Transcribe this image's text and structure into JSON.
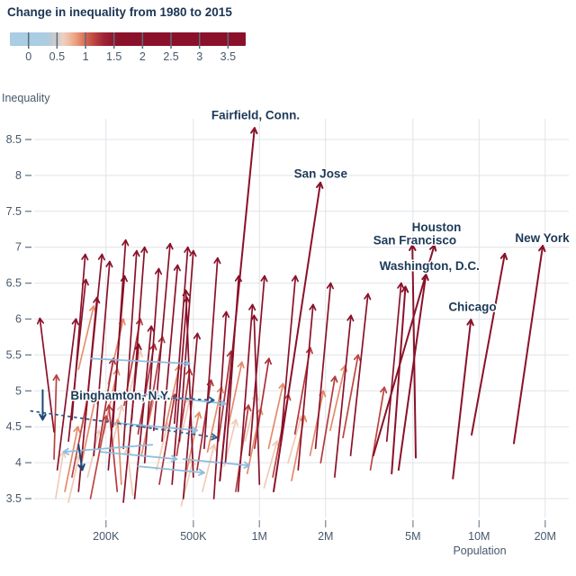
{
  "title": "Change in inequality from 1980 to 2015",
  "legend": {
    "tick_values": [
      0,
      0.5,
      1,
      1.5,
      2,
      2.5,
      3,
      3.5
    ],
    "tick_labels": [
      "0",
      "0.5",
      "1",
      "1.5",
      "2",
      "2.5",
      "3",
      "3.5"
    ],
    "domain": [
      -0.327,
      3.81
    ],
    "stops": [
      {
        "t": -0.35,
        "color": "#a9cde3"
      },
      {
        "t": 0.28,
        "color": "#a9cde3"
      },
      {
        "t": 0.45,
        "color": "#c5c9d0"
      },
      {
        "t": 0.62,
        "color": "#f0d2c0"
      },
      {
        "t": 0.85,
        "color": "#eb9a76"
      },
      {
        "t": 1.05,
        "color": "#cf5a49"
      },
      {
        "t": 1.3,
        "color": "#a02536"
      },
      {
        "t": 1.55,
        "color": "#8a1129"
      },
      {
        "t": 3.9,
        "color": "#8a1129"
      }
    ],
    "special_colors": {
      "navy": "#1c4677",
      "lightblue": "#8fbcdc",
      "dashed": "#2a5d8f"
    }
  },
  "axes": {
    "y_label": "Inequality",
    "x_label": "Population",
    "y_ticks": [
      {
        "v": 8.5,
        "label": "8.5"
      },
      {
        "v": 8,
        "label": "8"
      },
      {
        "v": 7.5,
        "label": "7.5"
      },
      {
        "v": 7,
        "label": "7"
      },
      {
        "v": 6.5,
        "label": "6.5"
      },
      {
        "v": 6,
        "label": "6"
      },
      {
        "v": 5.5,
        "label": "5.5"
      },
      {
        "v": 5,
        "label": "5"
      },
      {
        "v": 4.5,
        "label": "4.5"
      },
      {
        "v": 4,
        "label": "4"
      },
      {
        "v": 3.5,
        "label": "3.5"
      }
    ],
    "x_ticks": [
      {
        "p": 200,
        "label": "200K"
      },
      {
        "p": 500,
        "label": "500K"
      },
      {
        "p": 1000,
        "label": "1M"
      },
      {
        "p": 2000,
        "label": "2M"
      },
      {
        "p": 5000,
        "label": "5M"
      },
      {
        "p": 10000,
        "label": "10M"
      },
      {
        "p": 20000,
        "label": "20M"
      }
    ]
  },
  "chart_data": {
    "type": "arrow-scatter",
    "x_axis": "metro population (log scale, thousands)",
    "y_axis": "inequality (ratio)",
    "note": "each arrow runs from 1980 value to 2015 value; color encodes change",
    "cities": [
      {
        "name": "Fairfield, Conn.",
        "anchor_p": 960,
        "anchor_v": 8.83,
        "arrow": [
          660,
          3.75,
          950,
          8.66
        ]
      },
      {
        "name": "San Jose",
        "anchor_p": 1900,
        "anchor_v": 8.02,
        "arrow": [
          1160,
          3.6,
          1895,
          7.9
        ]
      },
      {
        "name": "Houston",
        "anchor_p": 6400,
        "anchor_v": 7.27,
        "arrow": [
          3300,
          4.1,
          6260,
          7.03
        ]
      },
      {
        "name": "San Francisco",
        "anchor_p": 5100,
        "anchor_v": 7.09,
        "arrow": [
          5150,
          4.07,
          4970,
          7.03
        ]
      },
      {
        "name": "Washington, D.C.",
        "anchor_p": 5950,
        "anchor_v": 6.73,
        "arrow": [
          4300,
          3.9,
          5730,
          6.62
        ]
      },
      {
        "name": "New York",
        "anchor_p": 19400,
        "anchor_v": 7.12,
        "arrow": [
          14400,
          4.27,
          19500,
          7.02
        ]
      },
      {
        "name": "Chicago",
        "anchor_p": 9330,
        "anchor_v": 6.16,
        "arrow": [
          7600,
          3.78,
          9180,
          5.99
        ]
      },
      {
        "name": "Binghamton, N.Y.",
        "anchor_p": 233,
        "anchor_v": 4.93,
        "arrow": [
          103,
          5.01,
          103,
          4.6,
          "navy"
        ]
      }
    ],
    "unlabeled_city_arrows": [
      [
        4000,
        3.85,
        4620,
        6.45
      ],
      [
        9250,
        4.39,
        13100,
        6.91
      ]
    ],
    "arrows": [
      [
        135,
        3.45,
        151,
        4.1
      ],
      [
        165,
        3.8,
        186,
        4.45
      ],
      [
        210,
        4.15,
        236,
        4.8
      ],
      [
        265,
        3.55,
        249,
        4.2
      ],
      [
        340,
        3.9,
        382,
        4.55
      ],
      [
        430,
        4.25,
        483,
        4.9
      ],
      [
        550,
        3.6,
        622,
        4.25
      ],
      [
        690,
        3.95,
        782,
        4.6
      ],
      [
        860,
        4.3,
        972,
        4.95
      ],
      [
        1050,
        3.65,
        1202,
        4.3
      ],
      [
        1350,
        4.0,
        1552,
        4.65
      ],
      [
        252,
        4.9,
        288,
        5.55
      ],
      [
        440,
        3.4,
        500,
        4.05
      ],
      [
        118,
        3.5,
        128,
        4.15
      ],
      [
        130,
        3.6,
        149,
        4.5
      ],
      [
        155,
        4.0,
        179,
        4.9
      ],
      [
        195,
        4.4,
        226,
        5.3
      ],
      [
        235,
        3.7,
        226,
        4.6
      ],
      [
        290,
        4.1,
        336,
        5.0
      ],
      [
        370,
        4.45,
        432,
        5.35
      ],
      [
        460,
        3.8,
        532,
        4.7
      ],
      [
        580,
        4.15,
        672,
        5.05
      ],
      [
        720,
        4.5,
        832,
        5.4
      ],
      [
        880,
        3.85,
        1012,
        4.75
      ],
      [
        1100,
        4.2,
        1282,
        5.1
      ],
      [
        1400,
        3.75,
        1604,
        4.65
      ],
      [
        1700,
        4.1,
        1955,
        5.0
      ],
      [
        2100,
        4.45,
        2455,
        5.35
      ],
      [
        150,
        5.3,
        176,
        6.18
      ],
      [
        205,
        5.1,
        240,
        6.0
      ],
      [
        140,
        3.8,
        166,
        4.95
      ],
      [
        185,
        4.2,
        216,
        5.45
      ],
      [
        225,
        3.6,
        206,
        4.8
      ],
      [
        280,
        4.4,
        332,
        5.65
      ],
      [
        350,
        3.7,
        412,
        4.95
      ],
      [
        420,
        4.1,
        482,
        5.3
      ],
      [
        520,
        3.9,
        602,
        5.15
      ],
      [
        650,
        4.3,
        742,
        5.55
      ],
      [
        780,
        3.6,
        892,
        4.8
      ],
      [
        950,
        4.2,
        1105,
        5.45
      ],
      [
        1150,
        3.8,
        1355,
        4.95
      ],
      [
        1450,
        4.4,
        1705,
        5.6
      ],
      [
        1900,
        4.0,
        2210,
        5.2
      ],
      [
        2400,
        4.35,
        2815,
        5.5
      ],
      [
        3200,
        3.9,
        3705,
        5.05
      ],
      [
        170,
        3.5,
        201,
        4.65
      ],
      [
        310,
        4.55,
        362,
        5.75
      ],
      [
        242,
        4.8,
        287,
        6.0
      ],
      [
        150,
        3.6,
        182,
        6.3
      ],
      [
        176,
        4.1,
        208,
        6.8
      ],
      [
        205,
        3.9,
        243,
        6.6
      ],
      [
        240,
        4.2,
        276,
        6.95
      ],
      [
        300,
        4.0,
        348,
        6.7
      ],
      [
        330,
        4.45,
        392,
        7.05
      ],
      [
        400,
        3.7,
        468,
        6.3
      ],
      [
        432,
        4.3,
        500,
        6.95
      ],
      [
        500,
        3.8,
        462,
        6.4
      ],
      [
        560,
        4.2,
        645,
        6.85
      ],
      [
        620,
        3.5,
        706,
        6.1
      ],
      [
        700,
        4.0,
        805,
        6.6
      ],
      [
        800,
        3.6,
        930,
        6.2
      ],
      [
        900,
        4.1,
        1055,
        6.6
      ],
      [
        1000,
        3.7,
        945,
        6.05
      ],
      [
        1250,
        4.3,
        1460,
        6.6
      ],
      [
        1500,
        3.9,
        1755,
        6.2
      ],
      [
        1800,
        4.2,
        2110,
        6.5
      ],
      [
        2200,
        3.8,
        2610,
        6.05
      ],
      [
        2600,
        4.1,
        3120,
        6.35
      ],
      [
        160,
        4.5,
        192,
        6.9
      ],
      [
        262,
        4.6,
        300,
        7.0
      ],
      [
        270,
        3.5,
        322,
        5.9
      ],
      [
        120,
        3.9,
        146,
        6.0
      ],
      [
        135,
        4.3,
        162,
        6.55
      ],
      [
        3800,
        4.3,
        4420,
        6.5
      ],
      [
        450,
        3.5,
        522,
        5.8
      ],
      [
        240,
        3.45,
        282,
        5.65
      ],
      [
        116,
        4.43,
        100,
        6.01
      ],
      [
        215,
        4.5,
        246,
        7.1
      ],
      [
        410,
        4.55,
        472,
        7.0
      ],
      [
        360,
        4.3,
        424,
        6.75
      ],
      [
        140,
        4.6,
        161,
        6.9
      ],
      [
        116,
        4.05,
        119,
        5.22
      ],
      [
        170,
        5.45,
        480,
        5.38,
        "lightblue"
      ],
      [
        300,
        4.95,
        700,
        4.82,
        "lightblue"
      ],
      [
        190,
        4.15,
        420,
        4.05,
        "lightblue"
      ],
      [
        325,
        4.25,
        128,
        4.15,
        "lightblue"
      ],
      [
        280,
        3.95,
        560,
        3.86,
        "lightblue"
      ],
      [
        230,
        4.55,
        520,
        4.45,
        "lightblue"
      ],
      [
        450,
        4.05,
        900,
        3.96,
        "lightblue"
      ],
      [
        150,
        4.25,
        156,
        3.9,
        "navy"
      ],
      [
        91,
        4.72,
        640,
        4.35,
        "dashed"
      ],
      [
        210,
        4.95,
        620,
        4.87,
        "dashed"
      ]
    ]
  }
}
